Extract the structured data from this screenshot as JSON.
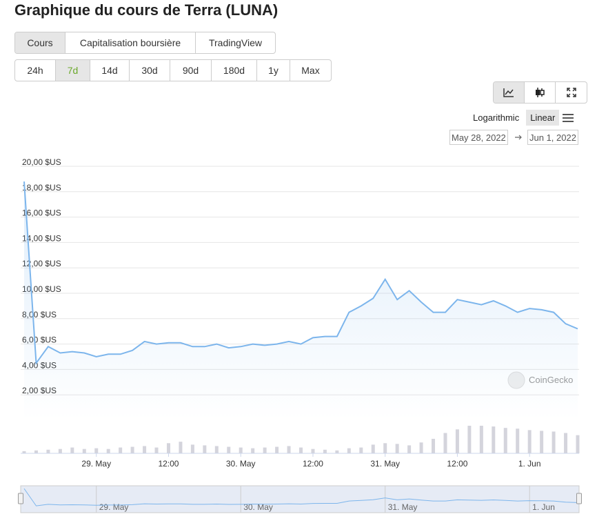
{
  "header": {
    "title": "Graphique du cours de Terra (LUNA)"
  },
  "tabs": [
    "Cours",
    "Capitalisation boursière",
    "TradingView"
  ],
  "active_tab": 0,
  "ranges": [
    "24h",
    "7d",
    "14d",
    "30d",
    "90d",
    "180d",
    "1y",
    "Max"
  ],
  "active_range": 1,
  "scale_options": [
    "Logarithmic",
    "Linear"
  ],
  "active_scale": 1,
  "date_range": {
    "from": "May 28, 2022",
    "to": "Jun 1, 2022"
  },
  "watermark": "CoinGecko",
  "chart_data": {
    "type": "line",
    "categories": [
      null,
      null,
      null,
      null,
      null,
      null,
      "29. May",
      null,
      null,
      null,
      null,
      null,
      "12:00",
      null,
      null,
      null,
      null,
      null,
      "30. May",
      null,
      null,
      null,
      null,
      null,
      "12:00",
      null,
      null,
      null,
      null,
      null,
      "31. May",
      null,
      null,
      null,
      null,
      null,
      "12:00",
      null,
      null,
      null,
      null,
      null,
      "1. Jun",
      null,
      null,
      null,
      null
    ],
    "values": [
      18.8,
      4.5,
      5.8,
      5.3,
      5.4,
      5.3,
      5.0,
      5.2,
      5.2,
      5.5,
      6.2,
      6.0,
      6.1,
      6.1,
      5.8,
      5.8,
      6.0,
      5.7,
      5.8,
      6.0,
      5.9,
      6.0,
      6.2,
      6.0,
      6.5,
      6.6,
      6.6,
      8.5,
      9.0,
      9.6,
      11.1,
      9.5,
      10.2,
      9.3,
      8.5,
      8.5,
      9.5,
      9.3,
      9.1,
      9.4,
      9.0,
      8.5,
      8.8,
      8.7,
      8.5,
      7.6,
      7.2
    ],
    "color": "#7cb5ec",
    "volumes": [
      3,
      4,
      5,
      6,
      8,
      6,
      7,
      6,
      8,
      9,
      10,
      8,
      14,
      16,
      12,
      11,
      10,
      9,
      8,
      7,
      8,
      9,
      10,
      8,
      6,
      5,
      4,
      7,
      8,
      12,
      14,
      13,
      11,
      15,
      20,
      28,
      33,
      38,
      38,
      37,
      35,
      34,
      32,
      31,
      30,
      28,
      25
    ],
    "volume_color": "#d4d4dc",
    "ylim": [
      0,
      20
    ],
    "yticks": [
      {
        "value": 2,
        "label": "2,00 $US"
      },
      {
        "value": 4,
        "label": "4,00 $US"
      },
      {
        "value": 6,
        "label": "6,00 $US"
      },
      {
        "value": 8,
        "label": "8,00 $US"
      },
      {
        "value": 10,
        "label": "10,00 $US"
      },
      {
        "value": 12,
        "label": "12,00 $US"
      },
      {
        "value": 14,
        "label": "14,00 $US"
      },
      {
        "value": 16,
        "label": "16,00 $US"
      },
      {
        "value": 18,
        "label": "18,00 $US"
      },
      {
        "value": 20,
        "label": "20,00 $US"
      }
    ],
    "grid": true,
    "navigator_labels": [
      "29. May",
      "30. May",
      "31. May",
      "1. Jun"
    ]
  }
}
